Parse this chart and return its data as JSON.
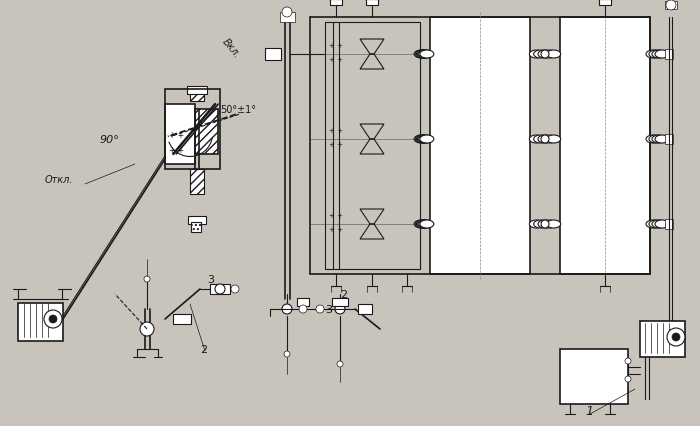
{
  "bg_color": "#c8c4bc",
  "line_color": "#1a1a1a",
  "labels": {
    "vkl": "Вкл.",
    "otkl": "Откл.",
    "angle90": "90°",
    "angle50": "50°±1°",
    "num1": "1",
    "num2a": "2",
    "num2b": "2",
    "num3a": "3",
    "num3b": "3"
  },
  "fig_width": 7.0,
  "fig_height": 4.27,
  "dpi": 100
}
